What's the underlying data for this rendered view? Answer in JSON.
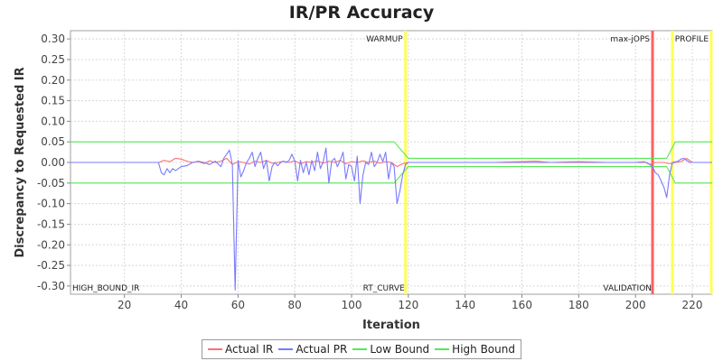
{
  "chart_data": {
    "type": "line",
    "title": "IR/PR Accuracy",
    "xlabel": "Iteration",
    "ylabel": "Discrepancy to Requested IR",
    "xlim": [
      1,
      227
    ],
    "ylim": [
      -0.32,
      0.32
    ],
    "x_ticks": [
      20,
      40,
      60,
      80,
      100,
      120,
      140,
      160,
      180,
      200,
      220
    ],
    "y_ticks": [
      0.3,
      0.25,
      0.2,
      0.15,
      0.1,
      0.05,
      0.0,
      -0.05,
      -0.1,
      -0.15,
      -0.2,
      -0.25,
      -0.3
    ],
    "grid": true,
    "legend_position": "bottom",
    "series": [
      {
        "name": "Actual IR",
        "color": "#ff7070",
        "points": [
          [
            1,
            0
          ],
          [
            30,
            0
          ],
          [
            32,
            0
          ],
          [
            34,
            0.005
          ],
          [
            36,
            0.002
          ],
          [
            38,
            0.01
          ],
          [
            40,
            0.008
          ],
          [
            42,
            0.003
          ],
          [
            44,
            0
          ],
          [
            46,
            0.002
          ],
          [
            48,
            -0.003
          ],
          [
            50,
            0.004
          ],
          [
            52,
            0
          ],
          [
            54,
            0.003
          ],
          [
            56,
            0.01
          ],
          [
            58,
            -0.005
          ],
          [
            60,
            0.002
          ],
          [
            62,
            0
          ],
          [
            64,
            -0.004
          ],
          [
            66,
            0.003
          ],
          [
            68,
            0
          ],
          [
            70,
            0.005
          ],
          [
            72,
            -0.002
          ],
          [
            74,
            0
          ],
          [
            76,
            0.003
          ],
          [
            78,
            0
          ],
          [
            80,
            0.004
          ],
          [
            82,
            -0.003
          ],
          [
            84,
            0.002
          ],
          [
            86,
            0
          ],
          [
            88,
            0.004
          ],
          [
            90,
            -0.002
          ],
          [
            92,
            0.003
          ],
          [
            94,
            0
          ],
          [
            96,
            0.005
          ],
          [
            98,
            -0.003
          ],
          [
            100,
            0.002
          ],
          [
            102,
            0
          ],
          [
            104,
            0.004
          ],
          [
            106,
            0
          ],
          [
            108,
            0.003
          ],
          [
            110,
            -0.002
          ],
          [
            112,
            0.002
          ],
          [
            114,
            0
          ],
          [
            116,
            -0.01
          ],
          [
            118,
            -0.003
          ],
          [
            120,
            0
          ],
          [
            150,
            0
          ],
          [
            165,
            0.003
          ],
          [
            170,
            0
          ],
          [
            180,
            0.002
          ],
          [
            190,
            0
          ],
          [
            200,
            0
          ],
          [
            203,
            0.002
          ],
          [
            205,
            -0.005
          ],
          [
            207,
            0
          ],
          [
            210,
            0
          ],
          [
            212,
            -0.003
          ],
          [
            214,
            0
          ],
          [
            216,
            0.002
          ],
          [
            218,
            0.01
          ],
          [
            220,
            0
          ],
          [
            227,
            0
          ]
        ]
      },
      {
        "name": "Actual PR",
        "color": "#7a7aff",
        "points": [
          [
            1,
            0
          ],
          [
            32,
            0
          ],
          [
            33,
            -0.025
          ],
          [
            34,
            -0.03
          ],
          [
            35,
            -0.015
          ],
          [
            36,
            -0.025
          ],
          [
            37,
            -0.015
          ],
          [
            38,
            -0.02
          ],
          [
            39,
            -0.015
          ],
          [
            40,
            -0.01
          ],
          [
            42,
            -0.008
          ],
          [
            44,
            0
          ],
          [
            46,
            0.003
          ],
          [
            48,
            0
          ],
          [
            50,
            -0.005
          ],
          [
            52,
            0.003
          ],
          [
            54,
            -0.01
          ],
          [
            55,
            0.01
          ],
          [
            56,
            0.02
          ],
          [
            57,
            0.03
          ],
          [
            58,
            -0.005
          ],
          [
            59,
            -0.31
          ],
          [
            60,
            0.005
          ],
          [
            61,
            -0.035
          ],
          [
            62,
            -0.02
          ],
          [
            63,
            0
          ],
          [
            64,
            0.01
          ],
          [
            65,
            0.025
          ],
          [
            66,
            -0.01
          ],
          [
            67,
            0.01
          ],
          [
            68,
            0.025
          ],
          [
            69,
            -0.015
          ],
          [
            70,
            0.005
          ],
          [
            71,
            -0.045
          ],
          [
            72,
            -0.01
          ],
          [
            73,
            0
          ],
          [
            74,
            -0.008
          ],
          [
            75,
            0
          ],
          [
            76,
            0.003
          ],
          [
            77,
            0
          ],
          [
            78,
            0.005
          ],
          [
            79,
            0.02
          ],
          [
            80,
            0.003
          ],
          [
            81,
            -0.045
          ],
          [
            82,
            0.005
          ],
          [
            83,
            -0.025
          ],
          [
            84,
            0
          ],
          [
            85,
            -0.03
          ],
          [
            86,
            0.005
          ],
          [
            87,
            -0.02
          ],
          [
            88,
            0.025
          ],
          [
            89,
            -0.015
          ],
          [
            90,
            0.002
          ],
          [
            91,
            0.035
          ],
          [
            92,
            -0.05
          ],
          [
            93,
            0.003
          ],
          [
            94,
            0.01
          ],
          [
            95,
            -0.01
          ],
          [
            96,
            0.005
          ],
          [
            97,
            0.025
          ],
          [
            98,
            -0.04
          ],
          [
            99,
            -0.005
          ],
          [
            100,
            -0.01
          ],
          [
            101,
            -0.045
          ],
          [
            102,
            0.015
          ],
          [
            103,
            -0.1
          ],
          [
            104,
            -0.03
          ],
          [
            105,
            0
          ],
          [
            106,
            -0.005
          ],
          [
            107,
            0.025
          ],
          [
            108,
            -0.01
          ],
          [
            109,
            0
          ],
          [
            110,
            0.02
          ],
          [
            111,
            0.002
          ],
          [
            112,
            0.025
          ],
          [
            113,
            -0.04
          ],
          [
            114,
            0
          ],
          [
            115,
            -0.01
          ],
          [
            116,
            -0.1
          ],
          [
            117,
            -0.07
          ],
          [
            118,
            -0.03
          ],
          [
            119,
            -0.005
          ],
          [
            120,
            0
          ],
          [
            150,
            0
          ],
          [
            200,
            0
          ],
          [
            204,
            0
          ],
          [
            206,
            -0.01
          ],
          [
            207,
            -0.025
          ],
          [
            208,
            -0.03
          ],
          [
            209,
            -0.045
          ],
          [
            210,
            -0.06
          ],
          [
            211,
            -0.085
          ],
          [
            212,
            -0.03
          ],
          [
            213,
            0
          ],
          [
            215,
            0.003
          ],
          [
            216,
            0.008
          ],
          [
            217,
            0.01
          ],
          [
            219,
            0
          ],
          [
            227,
            0
          ]
        ]
      },
      {
        "name": "Low Bound",
        "color": "#55e855",
        "points": [
          [
            1,
            -0.05
          ],
          [
            115,
            -0.05
          ],
          [
            120,
            -0.01
          ],
          [
            211,
            -0.01
          ],
          [
            214,
            -0.05
          ],
          [
            227,
            -0.05
          ]
        ]
      },
      {
        "name": "High Bound",
        "color": "#55e855",
        "points": [
          [
            1,
            0.05
          ],
          [
            115,
            0.05
          ],
          [
            120,
            0.01
          ],
          [
            211,
            0.01
          ],
          [
            214,
            0.05
          ],
          [
            227,
            0.05
          ]
        ]
      }
    ],
    "markers": [
      {
        "x": 119,
        "color": "#ffff55",
        "top_label": "WARMUP",
        "bottom_label": "RT_CURVE"
      },
      {
        "x": 206,
        "color": "#ff6060",
        "top_label": "max-jOPS",
        "bottom_label": "VALIDATION"
      },
      {
        "x": 213,
        "color": "#ffff55",
        "top_label": "",
        "bottom_label": ""
      },
      {
        "x": 227,
        "color": "#ffff55",
        "top_label": "PROFILE",
        "bottom_label": ""
      }
    ],
    "corner_label": "HIGH_BOUND_IR"
  }
}
